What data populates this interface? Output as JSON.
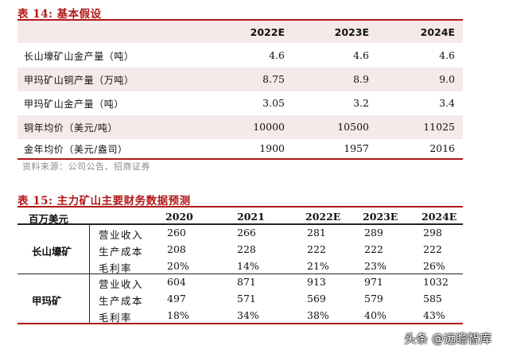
{
  "table14": {
    "title": "表 14:  基本假设",
    "years": [
      "2022E",
      "2023E",
      "2024E"
    ],
    "rows": [
      {
        "label": "长山壕矿山金产量（吨）",
        "values": [
          "4.6",
          "4.6",
          "4.6"
        ]
      },
      {
        "label": "甲玛矿山铜产量（万吨）",
        "values": [
          "8.75",
          "8.9",
          "9.0"
        ]
      },
      {
        "label": "甲玛矿山金产量（吨）",
        "values": [
          "3.05",
          "3.2",
          "3.4"
        ]
      },
      {
        "label": "铜年均价（美元/吨）",
        "values": [
          "10000",
          "10500",
          "11025"
        ]
      },
      {
        "label": "金年均价（美元/盎司）",
        "values": [
          "1900",
          "1957",
          "2016"
        ]
      }
    ],
    "source": "资料来源：公司公告、招商证券"
  },
  "table15": {
    "title": "表 15:  主力矿山主要财务数据预测",
    "unit_label": "百万美元",
    "years": [
      "2020",
      "2021",
      "2022E",
      "2023E",
      "2024E"
    ],
    "groups": [
      {
        "name": "长山壕矿",
        "rows": [
          {
            "metric": "营业收入",
            "values": [
              "260",
              "266",
              "281",
              "289",
              "298"
            ]
          },
          {
            "metric": "生产成本",
            "values": [
              "208",
              "228",
              "222",
              "222",
              "222"
            ]
          },
          {
            "metric": "毛利率",
            "values": [
              "20%",
              "14%",
              "21%",
              "23%",
              "26%"
            ]
          }
        ]
      },
      {
        "name": "甲玛矿",
        "rows": [
          {
            "metric": "营业收入",
            "values": [
              "604",
              "871",
              "913",
              "971",
              "1032"
            ]
          },
          {
            "metric": "生产成本",
            "values": [
              "497",
              "571",
              "569",
              "579",
              "585"
            ]
          },
          {
            "metric": "毛利率",
            "values": [
              "18%",
              "34%",
              "38%",
              "40%",
              "43%"
            ]
          }
        ]
      }
    ]
  },
  "watermark": "头条 @远瞻智库",
  "colors": {
    "accent": "#b01818",
    "shade": "#f6e9e9"
  }
}
